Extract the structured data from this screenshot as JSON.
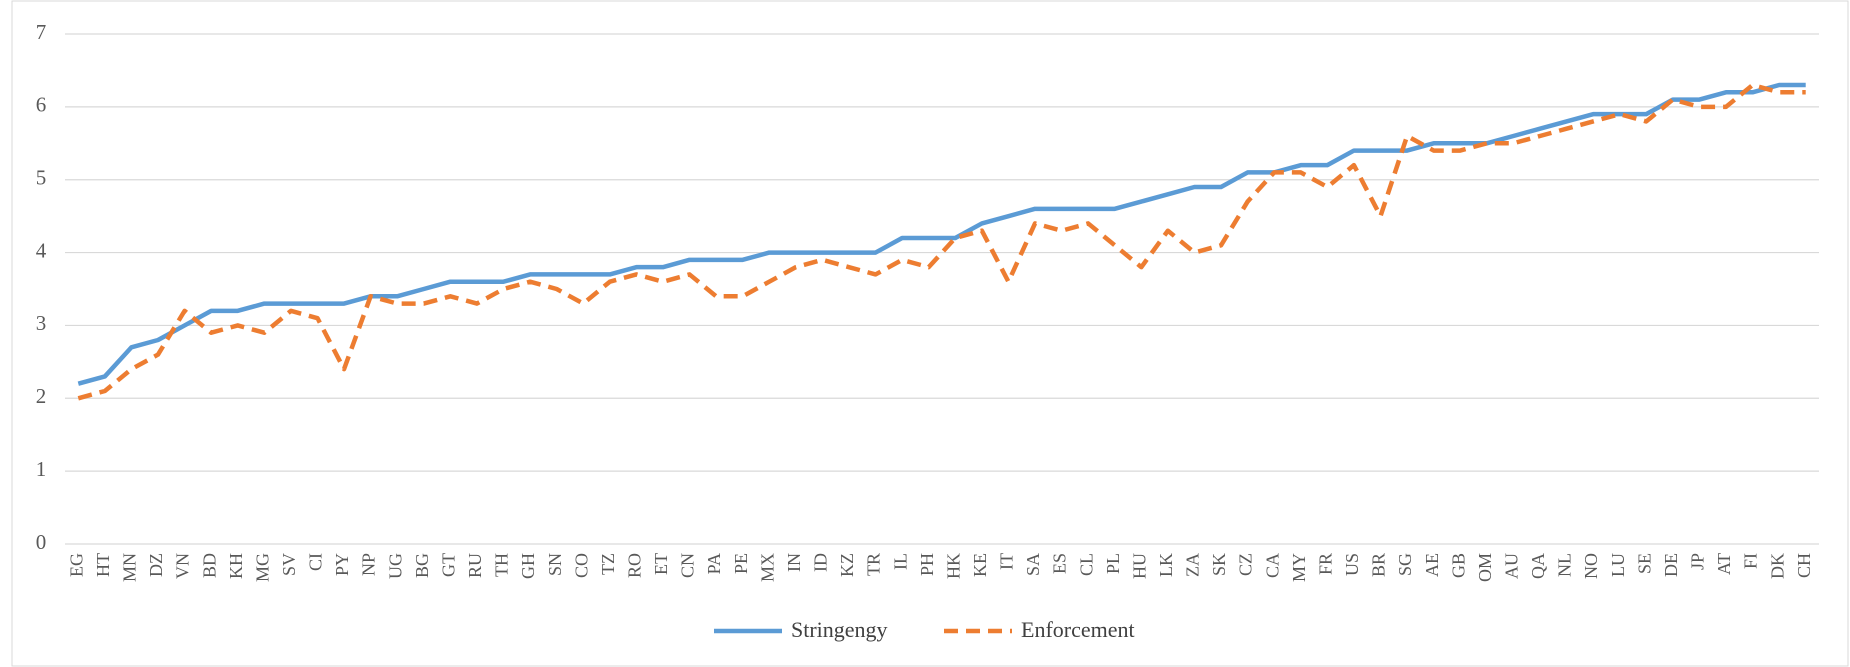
{
  "chart_data": {
    "type": "line",
    "categories": [
      "EG",
      "HT",
      "MN",
      "DZ",
      "VN",
      "BD",
      "KH",
      "MG",
      "SV",
      "CI",
      "PY",
      "NP",
      "UG",
      "BG",
      "GT",
      "RU",
      "TH",
      "GH",
      "SN",
      "CO",
      "TZ",
      "RO",
      "ET",
      "CN",
      "PA",
      "PE",
      "MX",
      "IN",
      "ID",
      "KZ",
      "TR",
      "IL",
      "PH",
      "HK",
      "KE",
      "IT",
      "SA",
      "ES",
      "CL",
      "PL",
      "HU",
      "LK",
      "ZA",
      "SK",
      "CZ",
      "CA",
      "MY",
      "FR",
      "US",
      "BR",
      "SG",
      "AE",
      "GB",
      "OM",
      "AU",
      "QA",
      "NL",
      "NO",
      "LU",
      "SE",
      "DE",
      "JP",
      "AT",
      "FI",
      "DK",
      "CH"
    ],
    "series": [
      {
        "name": "Stringengy",
        "color": "#5b9bd5",
        "dash": false,
        "values": [
          2.2,
          2.3,
          2.7,
          2.8,
          3.0,
          3.2,
          3.2,
          3.3,
          3.3,
          3.3,
          3.3,
          3.4,
          3.4,
          3.5,
          3.6,
          3.6,
          3.6,
          3.7,
          3.7,
          3.7,
          3.7,
          3.8,
          3.8,
          3.9,
          3.9,
          3.9,
          4.0,
          4.0,
          4.0,
          4.0,
          4.0,
          4.2,
          4.2,
          4.2,
          4.4,
          4.5,
          4.6,
          4.6,
          4.6,
          4.6,
          4.7,
          4.8,
          4.9,
          4.9,
          5.1,
          5.1,
          5.2,
          5.2,
          5.4,
          5.4,
          5.4,
          5.5,
          5.5,
          5.5,
          5.6,
          5.7,
          5.8,
          5.9,
          5.9,
          5.9,
          6.1,
          6.1,
          6.2,
          6.2,
          6.3,
          6.3
        ]
      },
      {
        "name": "Enforcement",
        "color": "#ed7d31",
        "dash": true,
        "values": [
          2.0,
          2.1,
          2.4,
          2.6,
          3.2,
          2.9,
          3.0,
          2.9,
          3.2,
          3.1,
          2.4,
          3.4,
          3.3,
          3.3,
          3.4,
          3.3,
          3.5,
          3.6,
          3.5,
          3.3,
          3.6,
          3.7,
          3.6,
          3.7,
          3.4,
          3.4,
          3.6,
          3.8,
          3.9,
          3.8,
          3.7,
          3.9,
          3.8,
          4.2,
          4.3,
          3.6,
          4.4,
          4.3,
          4.4,
          4.1,
          3.8,
          4.3,
          4.0,
          4.1,
          4.7,
          5.1,
          5.1,
          4.9,
          5.2,
          4.5,
          5.6,
          5.4,
          5.4,
          5.5,
          5.5,
          5.6,
          5.7,
          5.8,
          5.9,
          5.8,
          6.1,
          6.0,
          6.0,
          6.3,
          6.2,
          6.2
        ]
      }
    ],
    "ylim": [
      0,
      7
    ],
    "yticks": [
      0,
      1,
      2,
      3,
      4,
      5,
      6,
      7
    ],
    "grid": true,
    "legend": "bottom"
  }
}
